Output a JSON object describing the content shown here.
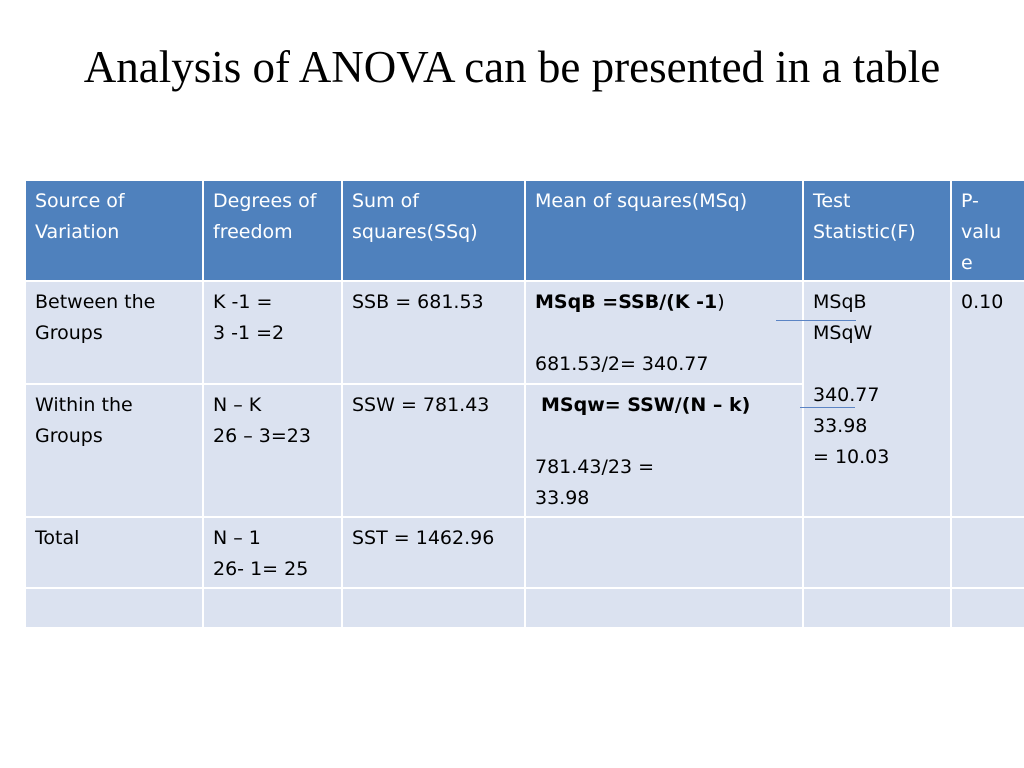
{
  "title": "Analysis of ANOVA can be presented in a table",
  "table": {
    "headers": [
      [
        "Source of",
        "Variation"
      ],
      [
        "Degrees of",
        "freedom"
      ],
      [
        "Sum of",
        "squares(SSq)"
      ],
      [
        "Mean of squares(MSq)"
      ],
      [
        "Test",
        "Statistic(F)"
      ],
      [
        "P-",
        "valu",
        "e"
      ]
    ],
    "rows": {
      "between": {
        "source": [
          "Between the",
          "Groups"
        ],
        "df": [
          "K -1 =",
          "3 -1 =2"
        ],
        "ss": "SSB = 681.53",
        "ms_formula": "MSqB =SSB/(K -1",
        "ms_formula_close": ")",
        "ms_value": "681.53/2= 340.77",
        "p_value": "0.10"
      },
      "within": {
        "source": [
          "Within the",
          "Groups"
        ],
        "df": [
          "N – K",
          "26 – 3=23"
        ],
        "ss": "SSW = 781.43",
        "ms_formula": "MSqw= SSW/(N – k)",
        "ms_value": [
          "781.43/23 =",
          "33.98"
        ]
      },
      "test_statistic": {
        "numerator": "MSqB",
        "denominator": "MSqW",
        "num_value": "340.77",
        "den_value": "33.98",
        "result": "= 10.03"
      },
      "total": {
        "source": "Total",
        "df": [
          "N – 1",
          "26- 1= 25"
        ],
        "ss": "SST = 1462.96"
      }
    }
  }
}
